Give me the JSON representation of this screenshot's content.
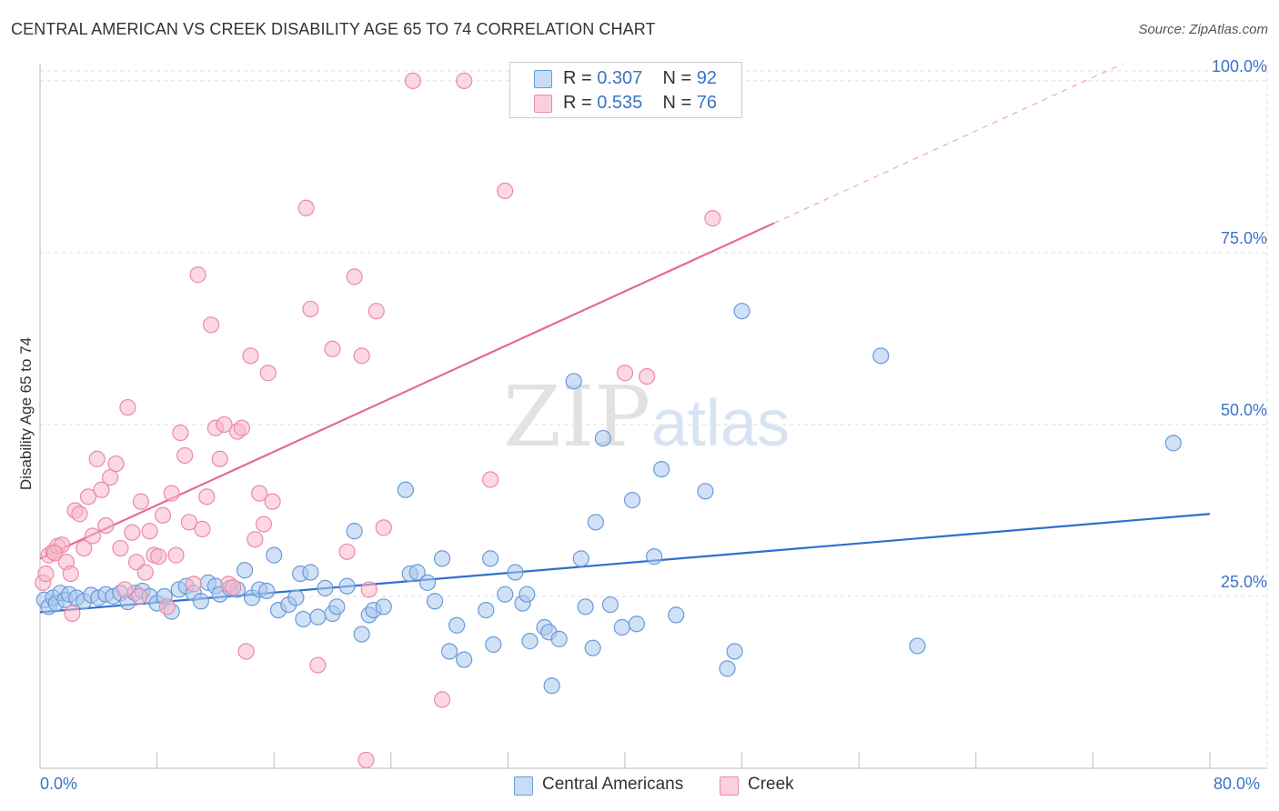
{
  "title": "CENTRAL AMERICAN VS CREEK DISABILITY AGE 65 TO 74 CORRELATION CHART",
  "source": "Source: ZipAtlas.com",
  "watermark": {
    "zip": "ZIP",
    "atlas": "atlas"
  },
  "legend_top": {
    "rows": [
      {
        "r_label": "R = ",
        "r_value": "0.307",
        "n_label": "N = ",
        "n_value": "92",
        "color": "#a9c9ef"
      },
      {
        "r_label": "R = ",
        "r_value": "0.535",
        "n_label": "N = ",
        "n_value": "76",
        "color": "#f7b8cb"
      }
    ]
  },
  "legend_bottom": [
    {
      "label": "Central Americans",
      "color": "#a9c9ef"
    },
    {
      "label": "Creek",
      "color": "#f7b8cb"
    }
  ],
  "x_axis": {
    "min_label": "0.0%",
    "max_label": "80.0%"
  },
  "colors": {
    "blue_fill": "#a9c9ef",
    "blue_stroke": "#6a9ad8",
    "blue_line": "#2f6fcc",
    "pink_fill": "#f7b8cb",
    "pink_stroke": "#ec8aa8",
    "pink_line": "#e46a92",
    "tick_label": "#3a74c4",
    "grid": "#dddddd"
  },
  "chart_data": {
    "type": "scatter",
    "title": "CENTRAL AMERICAN VS CREEK DISABILITY AGE 65 TO 74 CORRELATION CHART",
    "xlabel": "",
    "ylabel": "Disability Age 65 to 74",
    "xlim": [
      0,
      80
    ],
    "ylim": [
      0,
      102.5
    ],
    "y_ticks": [
      {
        "value": 25,
        "label": "25.0%"
      },
      {
        "value": 50,
        "label": "50.0%"
      },
      {
        "value": 75,
        "label": "75.0%"
      },
      {
        "value": 100,
        "label": "100.0%"
      }
    ],
    "x_ticks": [
      {
        "value": 0,
        "label": "0.0%"
      },
      {
        "value": 80,
        "label": "80.0%"
      }
    ],
    "grid": true,
    "legend": "top-center",
    "series": [
      {
        "name": "Central Americans",
        "R": 0.307,
        "N": 92,
        "trend": {
          "x0": 0,
          "y0": 22.7,
          "x1": 80,
          "y1": 37.0,
          "dashed_to": 80
        },
        "points": [
          [
            0.3,
            24.5
          ],
          [
            0.6,
            23.5
          ],
          [
            0.9,
            24.8
          ],
          [
            1.1,
            24.0
          ],
          [
            1.4,
            25.5
          ],
          [
            1.7,
            24.5
          ],
          [
            2.0,
            25.3
          ],
          [
            2.5,
            24.8
          ],
          [
            3.0,
            24.3
          ],
          [
            3.5,
            25.2
          ],
          [
            4.0,
            24.8
          ],
          [
            4.5,
            25.3
          ],
          [
            5.0,
            25.0
          ],
          [
            5.5,
            25.5
          ],
          [
            6.0,
            24.2
          ],
          [
            6.5,
            25.5
          ],
          [
            7.0,
            25.8
          ],
          [
            7.5,
            25.0
          ],
          [
            8.0,
            24.0
          ],
          [
            8.5,
            25.0
          ],
          [
            9.0,
            22.8
          ],
          [
            9.5,
            26.0
          ],
          [
            10.0,
            26.5
          ],
          [
            10.5,
            25.5
          ],
          [
            11.0,
            24.3
          ],
          [
            11.5,
            27.0
          ],
          [
            12.0,
            26.5
          ],
          [
            12.3,
            25.3
          ],
          [
            13.0,
            26.2
          ],
          [
            13.5,
            26.0
          ],
          [
            14.0,
            28.8
          ],
          [
            14.5,
            24.8
          ],
          [
            15.0,
            26.0
          ],
          [
            15.5,
            25.8
          ],
          [
            16.0,
            31.0
          ],
          [
            16.3,
            23.0
          ],
          [
            17.0,
            23.8
          ],
          [
            17.5,
            24.8
          ],
          [
            17.8,
            28.3
          ],
          [
            18.0,
            21.7
          ],
          [
            18.5,
            28.5
          ],
          [
            19.0,
            22.0
          ],
          [
            19.5,
            26.2
          ],
          [
            20.0,
            22.5
          ],
          [
            20.3,
            23.5
          ],
          [
            21.0,
            26.5
          ],
          [
            21.5,
            34.5
          ],
          [
            22.0,
            19.5
          ],
          [
            22.5,
            22.3
          ],
          [
            22.8,
            23.0
          ],
          [
            23.5,
            23.5
          ],
          [
            25.0,
            40.5
          ],
          [
            25.3,
            28.3
          ],
          [
            25.8,
            28.5
          ],
          [
            26.5,
            27.0
          ],
          [
            27.0,
            24.3
          ],
          [
            27.5,
            30.5
          ],
          [
            28.0,
            17.0
          ],
          [
            28.5,
            20.8
          ],
          [
            29.0,
            15.8
          ],
          [
            30.5,
            23.0
          ],
          [
            30.8,
            30.5
          ],
          [
            31.0,
            18.0
          ],
          [
            31.8,
            25.3
          ],
          [
            32.5,
            28.5
          ],
          [
            33.0,
            24.0
          ],
          [
            33.3,
            25.3
          ],
          [
            33.5,
            18.5
          ],
          [
            34.5,
            20.5
          ],
          [
            34.8,
            19.8
          ],
          [
            35.0,
            12.0
          ],
          [
            35.5,
            18.8
          ],
          [
            36.5,
            56.3
          ],
          [
            37.0,
            30.5
          ],
          [
            37.3,
            23.5
          ],
          [
            37.8,
            17.5
          ],
          [
            38.0,
            35.8
          ],
          [
            38.5,
            48.0
          ],
          [
            39.0,
            23.8
          ],
          [
            39.8,
            20.5
          ],
          [
            40.5,
            39.0
          ],
          [
            40.8,
            21.0
          ],
          [
            42.0,
            30.8
          ],
          [
            42.5,
            43.5
          ],
          [
            43.5,
            22.3
          ],
          [
            45.5,
            40.3
          ],
          [
            47.0,
            14.5
          ],
          [
            47.5,
            17.0
          ],
          [
            48.0,
            66.5
          ],
          [
            57.5,
            60.0
          ],
          [
            60.0,
            17.8
          ],
          [
            77.5,
            47.3
          ]
        ]
      },
      {
        "name": "Creek",
        "R": 0.535,
        "N": 76,
        "trend": {
          "x0": 0,
          "y0": 30.5,
          "x1": 50.2,
          "y1": 79.3,
          "dashed_to": 80
        },
        "points": [
          [
            0.2,
            27.0
          ],
          [
            0.4,
            28.3
          ],
          [
            0.6,
            31.0
          ],
          [
            0.9,
            31.5
          ],
          [
            1.2,
            32.3
          ],
          [
            1.5,
            32.5
          ],
          [
            1.8,
            30.0
          ],
          [
            2.1,
            28.3
          ],
          [
            2.4,
            37.5
          ],
          [
            2.7,
            37.0
          ],
          [
            3.0,
            32.0
          ],
          [
            3.3,
            39.5
          ],
          [
            3.6,
            33.8
          ],
          [
            3.9,
            45.0
          ],
          [
            4.2,
            40.5
          ],
          [
            4.5,
            35.3
          ],
          [
            4.8,
            42.3
          ],
          [
            5.2,
            44.3
          ],
          [
            5.5,
            32.0
          ],
          [
            5.8,
            26.0
          ],
          [
            6.0,
            52.5
          ],
          [
            6.3,
            34.3
          ],
          [
            6.6,
            30.0
          ],
          [
            6.9,
            38.8
          ],
          [
            7.2,
            28.5
          ],
          [
            7.5,
            34.5
          ],
          [
            7.8,
            31.0
          ],
          [
            8.1,
            30.8
          ],
          [
            8.4,
            36.8
          ],
          [
            8.7,
            23.5
          ],
          [
            9.0,
            40.0
          ],
          [
            9.3,
            31.0
          ],
          [
            9.6,
            48.8
          ],
          [
            9.9,
            45.5
          ],
          [
            10.2,
            35.8
          ],
          [
            10.5,
            26.8
          ],
          [
            10.8,
            71.8
          ],
          [
            11.1,
            34.8
          ],
          [
            11.4,
            39.5
          ],
          [
            11.7,
            64.5
          ],
          [
            12.0,
            49.5
          ],
          [
            12.3,
            45.0
          ],
          [
            12.6,
            50.0
          ],
          [
            12.9,
            26.8
          ],
          [
            13.2,
            26.3
          ],
          [
            13.5,
            49.0
          ],
          [
            13.8,
            49.5
          ],
          [
            14.1,
            17.0
          ],
          [
            14.4,
            60.0
          ],
          [
            14.7,
            33.3
          ],
          [
            15.0,
            40.0
          ],
          [
            15.3,
            35.5
          ],
          [
            15.6,
            57.5
          ],
          [
            15.9,
            38.8
          ],
          [
            18.2,
            81.5
          ],
          [
            18.5,
            66.8
          ],
          [
            19.0,
            15.0
          ],
          [
            20.0,
            61.0
          ],
          [
            21.0,
            31.5
          ],
          [
            21.5,
            71.5
          ],
          [
            22.0,
            60.0
          ],
          [
            23.0,
            66.5
          ],
          [
            23.5,
            35.0
          ],
          [
            22.5,
            26.0
          ],
          [
            22.3,
            1.2
          ],
          [
            27.5,
            10.0
          ],
          [
            25.5,
            100.0
          ],
          [
            29.0,
            100.0
          ],
          [
            30.8,
            42.0
          ],
          [
            31.8,
            84.0
          ],
          [
            40.0,
            57.5
          ],
          [
            41.5,
            57.0
          ],
          [
            46.0,
            80.0
          ],
          [
            1.0,
            31.3
          ],
          [
            2.2,
            22.5
          ],
          [
            6.8,
            25.0
          ]
        ]
      }
    ]
  }
}
